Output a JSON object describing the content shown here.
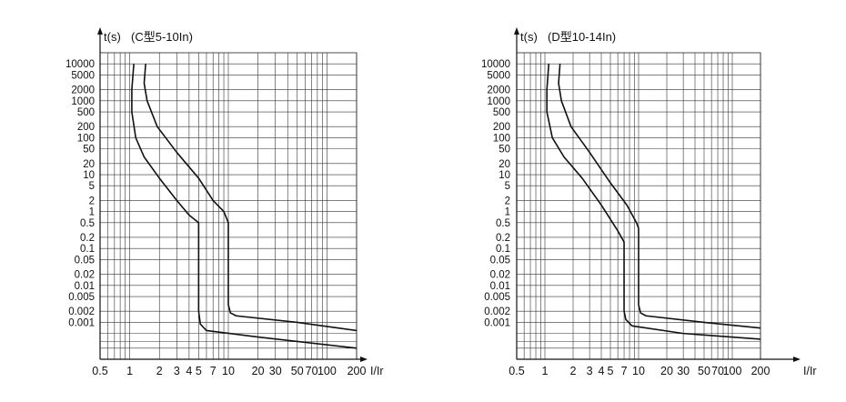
{
  "chart_data": [
    {
      "type": "line",
      "title": "(C型5-10In)",
      "ylabel": "t(s)",
      "xlabel": "I/Ir",
      "x_scale": "log",
      "y_scale": "log",
      "xlim": [
        0.5,
        200
      ],
      "ylim": [
        0.0001,
        20000
      ],
      "grid": true,
      "x_ticks": [
        {
          "v": 0.5,
          "label": "0.5"
        },
        {
          "v": 1,
          "label": "1"
        },
        {
          "v": 2,
          "label": "2"
        },
        {
          "v": 3,
          "label": "3"
        },
        {
          "v": 4,
          "label": "4"
        },
        {
          "v": 5,
          "label": "5"
        },
        {
          "v": 7,
          "label": "7"
        },
        {
          "v": 10,
          "label": "10"
        },
        {
          "v": 20,
          "label": "20"
        },
        {
          "v": 30,
          "label": "30"
        },
        {
          "v": 50,
          "label": "50"
        },
        {
          "v": 70,
          "label": "70"
        },
        {
          "v": 100,
          "label": "100"
        },
        {
          "v": 200,
          "label": "200"
        }
      ],
      "y_ticks": [
        {
          "v": 10000,
          "label": "10000"
        },
        {
          "v": 5000,
          "label": "5000"
        },
        {
          "v": 2000,
          "label": "2000"
        },
        {
          "v": 1000,
          "label": "1000"
        },
        {
          "v": 500,
          "label": "500"
        },
        {
          "v": 200,
          "label": "200"
        },
        {
          "v": 100,
          "label": "100"
        },
        {
          "v": 50,
          "label": "50"
        },
        {
          "v": 20,
          "label": "20"
        },
        {
          "v": 10,
          "label": "10"
        },
        {
          "v": 5,
          "label": "5"
        },
        {
          "v": 2,
          "label": "2"
        },
        {
          "v": 1,
          "label": "1"
        },
        {
          "v": 0.5,
          "label": "0.5"
        },
        {
          "v": 0.2,
          "label": "0.2"
        },
        {
          "v": 0.1,
          "label": "0.1"
        },
        {
          "v": 0.05,
          "label": "0.05"
        },
        {
          "v": 0.02,
          "label": "0.02"
        },
        {
          "v": 0.01,
          "label": "0.01"
        },
        {
          "v": 0.005,
          "label": "0.005"
        },
        {
          "v": 0.002,
          "label": "0.002"
        },
        {
          "v": 0.001,
          "label": "0.001"
        }
      ],
      "series": [
        {
          "values": [
            [
              1.1,
              10000
            ],
            [
              1.05,
              2000
            ],
            [
              1.05,
              500
            ],
            [
              1.15,
              100
            ],
            [
              1.4,
              30
            ],
            [
              2,
              8
            ],
            [
              3,
              2
            ],
            [
              4,
              0.8
            ],
            [
              5,
              0.5
            ],
            [
              5,
              0.002
            ],
            [
              5.2,
              0.0009
            ],
            [
              6,
              0.0006
            ],
            [
              20,
              0.0004
            ],
            [
              200,
              0.0002
            ]
          ]
        },
        {
          "values": [
            [
              1.45,
              10000
            ],
            [
              1.4,
              3000
            ],
            [
              1.5,
              1000
            ],
            [
              1.9,
              200
            ],
            [
              3,
              40
            ],
            [
              5,
              8
            ],
            [
              7,
              2
            ],
            [
              9,
              1
            ],
            [
              10,
              0.5
            ],
            [
              10,
              0.003
            ],
            [
              10.5,
              0.0018
            ],
            [
              12,
              0.0015
            ],
            [
              50,
              0.001
            ],
            [
              200,
              0.0006
            ]
          ]
        }
      ]
    },
    {
      "type": "line",
      "title": "(D型10-14In)",
      "ylabel": "t(s)",
      "xlabel": "I/Ir",
      "x_scale": "log",
      "y_scale": "log",
      "xlim": [
        0.5,
        200
      ],
      "ylim": [
        0.0001,
        20000
      ],
      "grid": true,
      "x_ticks": [
        {
          "v": 0.5,
          "label": "0.5"
        },
        {
          "v": 1,
          "label": "1"
        },
        {
          "v": 2,
          "label": "2"
        },
        {
          "v": 3,
          "label": "3"
        },
        {
          "v": 4,
          "label": "4"
        },
        {
          "v": 5,
          "label": "5"
        },
        {
          "v": 7,
          "label": "7"
        },
        {
          "v": 10,
          "label": "10"
        },
        {
          "v": 20,
          "label": "20"
        },
        {
          "v": 30,
          "label": "30"
        },
        {
          "v": 50,
          "label": "50"
        },
        {
          "v": 70,
          "label": "70"
        },
        {
          "v": 100,
          "label": "100"
        },
        {
          "v": 200,
          "label": "200"
        }
      ],
      "y_ticks": [
        {
          "v": 10000,
          "label": "10000"
        },
        {
          "v": 5000,
          "label": "5000"
        },
        {
          "v": 2000,
          "label": "2000"
        },
        {
          "v": 1000,
          "label": "1000"
        },
        {
          "v": 500,
          "label": "500"
        },
        {
          "v": 200,
          "label": "200"
        },
        {
          "v": 100,
          "label": "100"
        },
        {
          "v": 50,
          "label": "50"
        },
        {
          "v": 20,
          "label": "20"
        },
        {
          "v": 10,
          "label": "10"
        },
        {
          "v": 5,
          "label": "5"
        },
        {
          "v": 2,
          "label": "2"
        },
        {
          "v": 1,
          "label": "1"
        },
        {
          "v": 0.5,
          "label": "0.5"
        },
        {
          "v": 0.2,
          "label": "0.2"
        },
        {
          "v": 0.1,
          "label": "0.1"
        },
        {
          "v": 0.05,
          "label": "0.05"
        },
        {
          "v": 0.02,
          "label": "0.02"
        },
        {
          "v": 0.01,
          "label": "0.01"
        },
        {
          "v": 0.005,
          "label": "0.005"
        },
        {
          "v": 0.002,
          "label": "0.002"
        },
        {
          "v": 0.001,
          "label": "0.001"
        }
      ],
      "series": [
        {
          "values": [
            [
              1.1,
              10000
            ],
            [
              1.05,
              2000
            ],
            [
              1.05,
              500
            ],
            [
              1.2,
              100
            ],
            [
              1.6,
              30
            ],
            [
              2.5,
              8
            ],
            [
              4,
              1.5
            ],
            [
              6,
              0.3
            ],
            [
              7,
              0.15
            ],
            [
              7,
              0.002
            ],
            [
              7.3,
              0.0012
            ],
            [
              8.5,
              0.0008
            ],
            [
              30,
              0.0005
            ],
            [
              200,
              0.00035
            ]
          ]
        },
        {
          "values": [
            [
              1.45,
              10000
            ],
            [
              1.4,
              3000
            ],
            [
              1.5,
              1000
            ],
            [
              1.9,
              200
            ],
            [
              3,
              40
            ],
            [
              5,
              6
            ],
            [
              7.5,
              1.5
            ],
            [
              9.5,
              0.5
            ],
            [
              10,
              0.35
            ],
            [
              10,
              0.003
            ],
            [
              10.5,
              0.0018
            ],
            [
              12,
              0.0015
            ],
            [
              50,
              0.001
            ],
            [
              200,
              0.0007
            ]
          ]
        }
      ]
    }
  ]
}
